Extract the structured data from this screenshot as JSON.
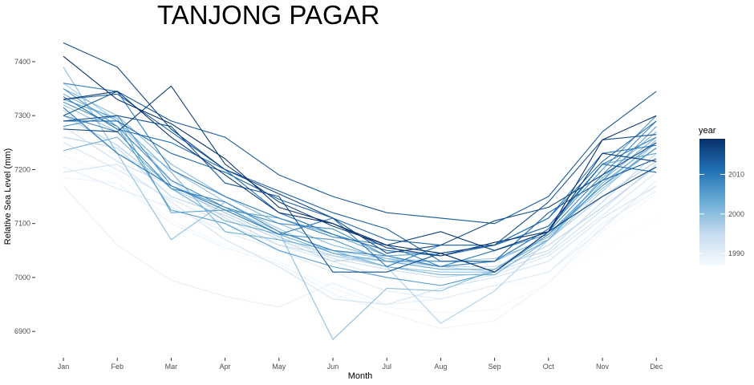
{
  "chart_data": {
    "type": "line",
    "title": "TANJONG PAGAR",
    "xlabel": "Month",
    "ylabel": "Relative Sea Level (mm)",
    "categories": [
      "Jan",
      "Feb",
      "Mar",
      "Apr",
      "May",
      "Jun",
      "Jul",
      "Aug",
      "Sep",
      "Oct",
      "Nov",
      "Dec"
    ],
    "ylim": [
      6875,
      7440
    ],
    "yticks": [
      6900,
      7000,
      7100,
      7200,
      7300,
      7400
    ],
    "ytick_labels": [
      "6900",
      "7000",
      "7100",
      "7200",
      "7300",
      "7400"
    ],
    "grid": false,
    "legend": {
      "title": "year",
      "placement": "right",
      "type": "colorbar",
      "range": [
        1987,
        2019
      ],
      "ticks": [
        1990,
        2000,
        2010
      ],
      "tick_labels": [
        "1990",
        "2000",
        "2010"
      ],
      "colors": [
        "#f7fbff",
        "#c6dbef",
        "#6baed6",
        "#2171b5",
        "#08306b"
      ]
    },
    "series": [
      {
        "year": 1987,
        "values": [
          7215,
          7195,
          7125,
          7050,
          7015,
          6985,
          6955,
          6975,
          6985,
          6995,
          7055,
          7110
        ]
      },
      {
        "year": 1988,
        "values": [
          7225,
          7190,
          7105,
          7060,
          7030,
          6980,
          6945,
          6935,
          6940,
          6990,
          7085,
          7155
        ]
      },
      {
        "year": 1989,
        "values": [
          7185,
          7175,
          7100,
          7055,
          7025,
          6970,
          6935,
          6905,
          6920,
          6990,
          7095,
          7170
        ]
      },
      {
        "year": 1990,
        "values": [
          7170,
          7060,
          6995,
          6965,
          6945,
          6990,
          6950,
          6960,
          6985,
          7010,
          7100,
          7160
        ]
      },
      {
        "year": 1991,
        "values": [
          7205,
          7165,
          7130,
          7085,
          7050,
          7010,
          6975,
          6960,
          6985,
          7010,
          7090,
          7180
        ]
      },
      {
        "year": 1992,
        "values": [
          7250,
          7200,
          7145,
          7100,
          7060,
          7030,
          7000,
          6985,
          7005,
          7040,
          7115,
          7195
        ]
      },
      {
        "year": 1993,
        "values": [
          7195,
          7210,
          7140,
          7070,
          7020,
          6960,
          6950,
          6980,
          7000,
          7030,
          7110,
          7170
        ]
      },
      {
        "year": 1994,
        "values": [
          7280,
          7215,
          7170,
          7120,
          7075,
          7035,
          7015,
          7000,
          7010,
          7045,
          7125,
          7210
        ]
      },
      {
        "year": 1995,
        "values": [
          7310,
          7230,
          7180,
          7110,
          7060,
          7040,
          7030,
          7020,
          7020,
          7050,
          7140,
          7230
        ]
      },
      {
        "year": 1996,
        "values": [
          7260,
          7240,
          7150,
          7115,
          7070,
          7030,
          7040,
          7020,
          7010,
          7060,
          7130,
          7205
        ]
      },
      {
        "year": 1997,
        "values": [
          7300,
          7245,
          7165,
          7120,
          7075,
          7040,
          7020,
          6915,
          6975,
          7070,
          7150,
          7215
        ]
      },
      {
        "year": 1998,
        "values": [
          7360,
          7290,
          7180,
          7130,
          7085,
          7050,
          7035,
          7030,
          7035,
          7070,
          7160,
          7250
        ]
      },
      {
        "year": 1999,
        "values": [
          7320,
          7270,
          7200,
          7140,
          7090,
          7045,
          7020,
          7010,
          7010,
          7080,
          7165,
          7240
        ]
      },
      {
        "year": 2000,
        "values": [
          7390,
          7230,
          7070,
          7140,
          7085,
          6885,
          6980,
          6975,
          7015,
          7080,
          7170,
          7255
        ]
      },
      {
        "year": 2001,
        "values": [
          7350,
          7300,
          7210,
          7150,
          7100,
          7060,
          7035,
          7020,
          7030,
          7075,
          7180,
          7260
        ]
      },
      {
        "year": 2002,
        "values": [
          7340,
          7290,
          7195,
          7085,
          7070,
          7050,
          7020,
          7005,
          7005,
          7070,
          7185,
          7270
        ]
      },
      {
        "year": 2003,
        "values": [
          7235,
          7260,
          7165,
          7105,
          7080,
          7045,
          7030,
          7015,
          7015,
          7070,
          7175,
          7250
        ]
      },
      {
        "year": 2004,
        "values": [
          7330,
          7295,
          7120,
          7125,
          7110,
          7080,
          7040,
          7045,
          7060,
          7095,
          7210,
          7230
        ]
      },
      {
        "year": 2005,
        "values": [
          7350,
          7280,
          7125,
          7100,
          7050,
          7020,
          7000,
          6985,
          7010,
          7080,
          7180,
          7280
        ]
      },
      {
        "year": 2006,
        "values": [
          7280,
          7300,
          7170,
          7130,
          7080,
          7070,
          7030,
          7030,
          7030,
          7090,
          7200,
          7300
        ]
      },
      {
        "year": 2007,
        "values": [
          7325,
          7280,
          7180,
          7130,
          7100,
          7090,
          7040,
          7020,
          7050,
          7080,
          7170,
          7240
        ]
      },
      {
        "year": 2008,
        "values": [
          7300,
          7270,
          7165,
          7140,
          7085,
          7050,
          7040,
          7020,
          7050,
          7085,
          7190,
          7290
        ]
      },
      {
        "year": 2009,
        "values": [
          7360,
          7345,
          7200,
          7150,
          7110,
          7075,
          7060,
          7020,
          7030,
          7090,
          7210,
          7260
        ]
      },
      {
        "year": 2010,
        "values": [
          7315,
          7230,
          7170,
          7125,
          7080,
          7110,
          7020,
          7060,
          7060,
          7110,
          7230,
          7245
        ]
      },
      {
        "year": 2011,
        "values": [
          7335,
          7275,
          7250,
          7200,
          7120,
          7080,
          7050,
          7040,
          7060,
          7110,
          7215,
          7290
        ]
      },
      {
        "year": 2012,
        "values": [
          7290,
          7290,
          7230,
          7195,
          7145,
          7110,
          7070,
          7060,
          7060,
          7095,
          7210,
          7195
        ]
      },
      {
        "year": 2013,
        "values": [
          7330,
          7340,
          7270,
          7200,
          7160,
          7120,
          7090,
          7030,
          7030,
          7120,
          7180,
          7220
        ]
      },
      {
        "year": 2014,
        "values": [
          7300,
          7345,
          7290,
          7260,
          7190,
          7150,
          7120,
          7110,
          7100,
          7150,
          7270,
          7345
        ]
      },
      {
        "year": 2015,
        "values": [
          7290,
          7300,
          7280,
          7175,
          7150,
          7010,
          7010,
          7045,
          7060,
          7140,
          7255,
          7265
        ]
      },
      {
        "year": 2016,
        "values": [
          7435,
          7390,
          7275,
          7200,
          7155,
          7110,
          7045,
          7060,
          7105,
          7130,
          7190,
          7250
        ]
      },
      {
        "year": 2017,
        "values": [
          7275,
          7270,
          7355,
          7210,
          7140,
          7095,
          7060,
          7085,
          7050,
          7085,
          7150,
          7205
        ]
      },
      {
        "year": 2018,
        "values": [
          7330,
          7345,
          7260,
          7190,
          7120,
          7100,
          7055,
          7040,
          7065,
          7085,
          7230,
          7215
        ]
      },
      {
        "year": 2019,
        "values": [
          7410,
          7330,
          7285,
          7220,
          7130,
          7100,
          7060,
          7045,
          7010,
          7085,
          7255,
          7300
        ]
      }
    ]
  }
}
